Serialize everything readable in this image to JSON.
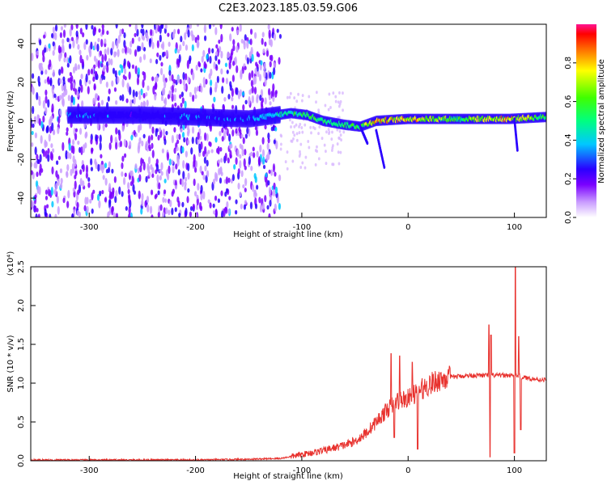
{
  "title": "C2E3.2023.185.03.59.G06",
  "chart_data": [
    {
      "type": "heatmap",
      "xlabel": "Height of straight line (km)",
      "ylabel": "Frequency (Hz)",
      "xlim": [
        -355,
        130
      ],
      "ylim": [
        -50,
        50
      ],
      "xticks": [
        -300,
        -200,
        -100,
        0,
        100
      ],
      "yticks": [
        -40,
        -20,
        0,
        20,
        40
      ],
      "colorbar": {
        "label": "Normalized spectral amplitude",
        "range": [
          0,
          1
        ],
        "ticks": [
          0.0,
          0.2,
          0.4,
          0.6,
          0.8
        ],
        "colors": [
          "#ffffff",
          "#8a2be2",
          "#3300ff",
          "#00b4ff",
          "#00ffcc",
          "#00ff00",
          "#ffff00",
          "#ff8000",
          "#ff0000",
          "#ff1493"
        ]
      },
      "features": {
        "noise_region_x": [
          -355,
          -120
        ],
        "ridge": [
          {
            "x": -320,
            "f": 3,
            "amp": 0.25
          },
          {
            "x": -250,
            "f": 3,
            "amp": 0.22
          },
          {
            "x": -200,
            "f": 2,
            "amp": 0.25
          },
          {
            "x": -150,
            "f": 1,
            "amp": 0.25
          },
          {
            "x": -110,
            "f": 4,
            "amp": 0.45
          },
          {
            "x": -95,
            "f": 3,
            "amp": 0.5
          },
          {
            "x": -80,
            "f": 0,
            "amp": 0.5
          },
          {
            "x": -60,
            "f": -2,
            "amp": 0.5
          },
          {
            "x": -45,
            "f": -3,
            "amp": 0.55
          },
          {
            "x": -30,
            "f": 0,
            "amp": 0.75
          },
          {
            "x": 0,
            "f": 1,
            "amp": 0.75
          },
          {
            "x": 50,
            "f": 1,
            "amp": 0.55
          },
          {
            "x": 95,
            "f": 1,
            "amp": 0.75
          },
          {
            "x": 130,
            "f": 2,
            "amp": 0.5
          }
        ]
      }
    },
    {
      "type": "line",
      "xlabel": "Height of straight line (km)",
      "ylabel": "SNR (10 * v/v)",
      "scale_label": "(x10⁴)",
      "xlim": [
        -355,
        130
      ],
      "ylim": [
        0,
        2.5
      ],
      "xticks": [
        -300,
        -200,
        -100,
        0,
        100
      ],
      "yticks": [
        0.0,
        0.5,
        1.0,
        1.5,
        2.0,
        2.5
      ],
      "color": "#e8322e",
      "series": [
        {
          "x": [
            -355,
            -300,
            -250,
            -200,
            -150,
            -120,
            -100,
            -80,
            -60,
            -50,
            -40,
            -30,
            -20,
            -10,
            0,
            10,
            20,
            30,
            40,
            50,
            60,
            70,
            80,
            90,
            100,
            110,
            120,
            130
          ],
          "y": [
            0.01,
            0.01,
            0.01,
            0.01,
            0.02,
            0.03,
            0.08,
            0.13,
            0.2,
            0.25,
            0.35,
            0.5,
            0.65,
            0.78,
            0.8,
            0.9,
            0.98,
            1.05,
            1.08,
            1.09,
            1.1,
            1.1,
            1.1,
            1.1,
            1.1,
            1.07,
            1.05,
            1.04
          ]
        }
      ],
      "spikes": [
        {
          "x": -16,
          "y": 1.38
        },
        {
          "x": -8,
          "y": 1.35
        },
        {
          "x": 4,
          "y": 1.27
        },
        {
          "x": 76,
          "y": 1.75
        },
        {
          "x": 78,
          "y": 1.62
        },
        {
          "x": 101,
          "y": 2.5
        },
        {
          "x": 104,
          "y": 1.6
        }
      ],
      "dips": [
        {
          "x": -13,
          "y": 0.3
        },
        {
          "x": 9,
          "y": 0.15
        },
        {
          "x": 77,
          "y": 0.05
        },
        {
          "x": 100,
          "y": 0.1
        },
        {
          "x": 106,
          "y": 0.4
        }
      ]
    }
  ]
}
